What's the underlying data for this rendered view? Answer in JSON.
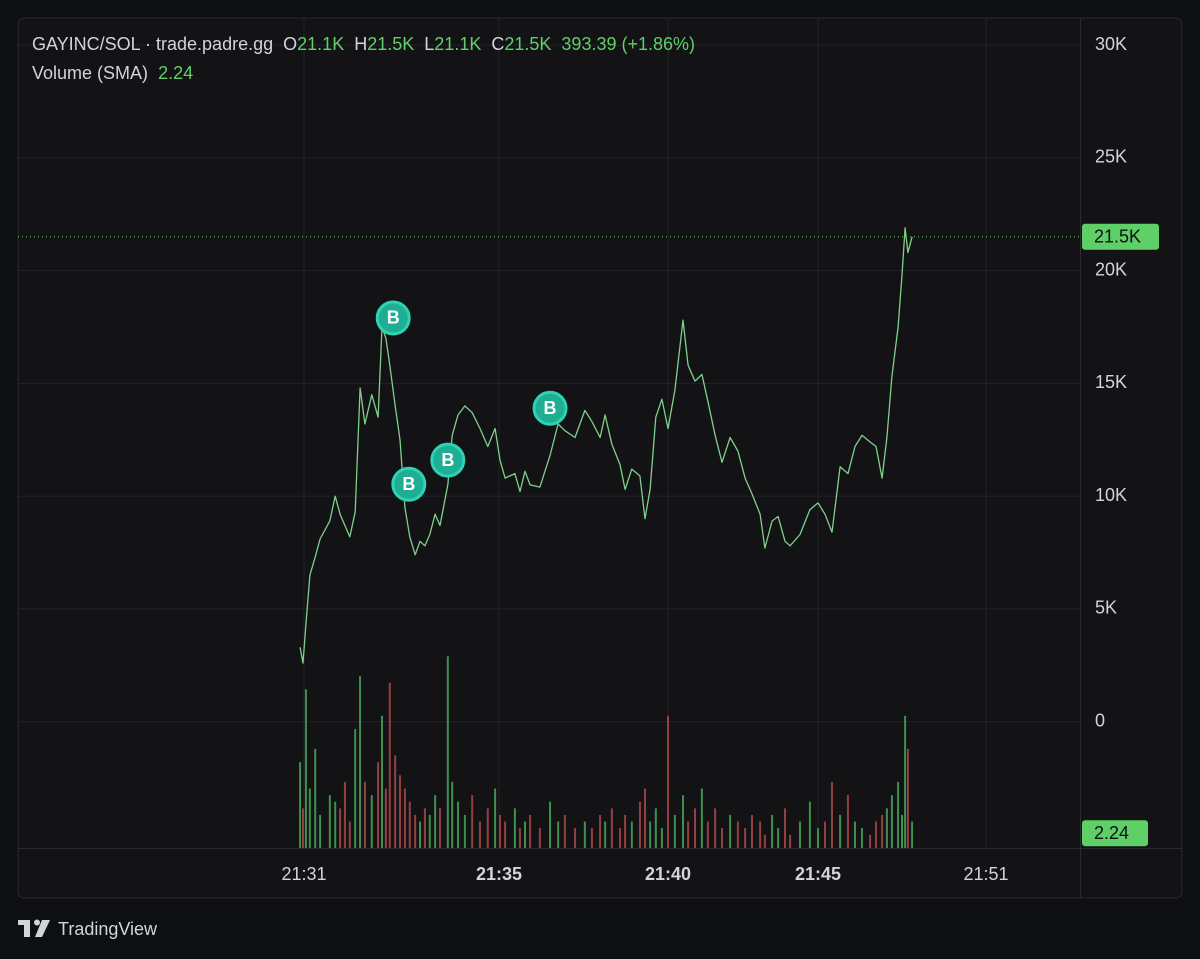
{
  "chart_data": {
    "type": "line",
    "x": [
      30.92,
      30.98,
      31.04,
      31.12,
      31.23,
      31.33,
      31.53,
      31.64,
      31.74,
      31.84,
      31.94,
      32.05,
      32.15,
      32.25,
      32.39,
      32.52,
      32.6,
      32.68,
      32.76,
      32.87,
      32.97,
      33.07,
      33.17,
      33.28,
      33.38,
      33.48,
      33.58,
      33.69,
      33.79,
      33.95,
      34.04,
      34.16,
      34.3,
      34.45,
      34.61,
      34.77,
      34.92,
      35.03,
      35.18,
      35.47,
      35.62,
      35.77,
      35.92,
      36.21,
      36.51,
      36.75,
      36.95,
      37.25,
      37.54,
      37.75,
      37.99,
      38.14,
      38.34,
      38.58,
      38.73,
      38.93,
      39.17,
      39.32,
      39.47,
      39.64,
      39.82,
      40.0,
      40.23,
      40.5,
      40.67,
      40.9,
      41.13,
      41.33,
      41.57,
      41.8,
      42.07,
      42.33,
      42.57,
      42.8,
      43.07,
      43.23,
      43.47,
      43.67,
      43.9,
      44.07,
      44.4,
      44.73,
      45.0,
      45.25,
      45.5,
      45.79,
      46.07,
      46.32,
      46.57,
      46.86,
      47.07,
      47.29,
      47.46,
      47.64,
      47.86,
      48.0,
      48.11,
      48.21,
      48.36
    ],
    "series": [
      {
        "name": "GAYINC/SOL · trade.padre.gg",
        "color": "#7fd08a",
        "values": [
          3300,
          2600,
          4300,
          6500,
          7300,
          8100,
          8900,
          10000,
          9200,
          8700,
          8200,
          9300,
          14800,
          13200,
          14500,
          13500,
          17500,
          17000,
          15800,
          14000,
          12500,
          9500,
          8200,
          7400,
          8000,
          7800,
          8300,
          9200,
          8700,
          10500,
          12700,
          13600,
          14000,
          13700,
          13000,
          12200,
          13000,
          11600,
          10800,
          11000,
          10200,
          11100,
          10500,
          10400,
          11800,
          13200,
          12900,
          12600,
          13800,
          13300,
          12600,
          13600,
          12300,
          11400,
          10300,
          11200,
          10900,
          9000,
          10300,
          13500,
          14300,
          13000,
          14700,
          17800,
          15800,
          15100,
          15400,
          14200,
          12700,
          11500,
          12600,
          12000,
          10800,
          10100,
          9200,
          7700,
          8900,
          9100,
          8000,
          7800,
          8300,
          9400,
          9700,
          9200,
          8400,
          11300,
          11000,
          12200,
          12700,
          12400,
          12200,
          10800,
          12600,
          15300,
          17500,
          19800,
          21900,
          20800,
          21500
        ]
      },
      {
        "name": "Volume (SMA)",
        "type": "bar",
        "axis": "y2",
        "up_color": "#3f8f4e",
        "down_color": "#93413f",
        "values": [
          13,
          6,
          24,
          9,
          15,
          5,
          8,
          7,
          6,
          10,
          4,
          18,
          26,
          10,
          8,
          13,
          20,
          9,
          25,
          14,
          11,
          9,
          7,
          5,
          4,
          6,
          5,
          8,
          6,
          29,
          10,
          7,
          5,
          8,
          4,
          6,
          9,
          5,
          4,
          6,
          3,
          4,
          5,
          3,
          7,
          4,
          5,
          3,
          4,
          3,
          5,
          4,
          6,
          3,
          5,
          4,
          7,
          9,
          4,
          6,
          3,
          20,
          5,
          8,
          4,
          6,
          9,
          4,
          6,
          3,
          5,
          4,
          3,
          5,
          4,
          2,
          5,
          3,
          6,
          2,
          4,
          7,
          3,
          4,
          10,
          5,
          8,
          4,
          3,
          2,
          4,
          5,
          6,
          8,
          10,
          5,
          20,
          15,
          4
        ]
      }
    ],
    "ohlc": [
      {
        "key": "O",
        "value": "21.1K"
      },
      {
        "key": "H",
        "value": "21.5K"
      },
      {
        "key": "L",
        "value": "21.1K"
      },
      {
        "key": "C",
        "value": "21.5K"
      }
    ],
    "change": "393.39 (+1.86%)",
    "volume_sma": 2.24,
    "last_value": 21500,
    "last_label": "21.5K",
    "accent": "#5fd068",
    "markers": [
      {
        "x": 32.83,
        "value": 17900,
        "label": "B"
      },
      {
        "x": 33.15,
        "value": 10530,
        "label": "B"
      },
      {
        "x": 33.95,
        "value": 11600,
        "label": "B"
      },
      {
        "x": 36.51,
        "value": 13900,
        "label": "B"
      }
    ],
    "xlim": [
      25.13,
      54.36
    ],
    "xticks": [
      {
        "value": 31,
        "label": "21:31"
      },
      {
        "value": 35,
        "label": "21:35"
      },
      {
        "value": 40,
        "label": "21:40"
      },
      {
        "value": 45,
        "label": "21:45"
      },
      {
        "value": 51,
        "label": "21:51"
      }
    ],
    "ylim": [
      -5600,
      31200
    ],
    "yticks": [
      0,
      {
        "value": 5000,
        "label": "5K"
      },
      {
        "value": 10000,
        "label": "10K"
      },
      {
        "value": 15000,
        "label": "15K"
      },
      {
        "value": 20000,
        "label": "20K"
      },
      {
        "value": 25000,
        "label": "25K"
      },
      {
        "value": 30000,
        "label": "30K"
      }
    ],
    "y2lim": [
      0,
      36
    ],
    "grid": true
  },
  "footer": {
    "brand": "TradingView"
  }
}
